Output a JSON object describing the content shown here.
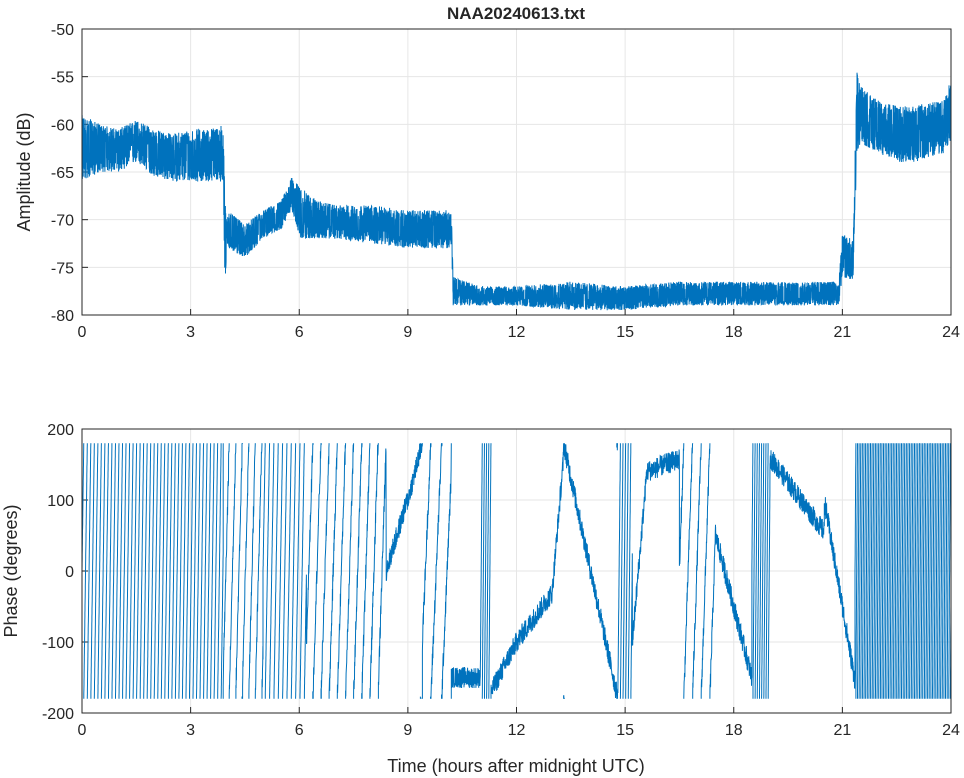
{
  "chart_data": [
    {
      "type": "line",
      "title": "NAA20240613.txt",
      "xlabel": "",
      "ylabel": "Amplitude (dB)",
      "xlim": [
        0,
        24
      ],
      "ylim": [
        -80,
        -50
      ],
      "xticks": [
        "0",
        "3",
        "6",
        "9",
        "12",
        "15",
        "18",
        "21",
        "24"
      ],
      "yticks": [
        "-50",
        "-55",
        "-60",
        "-65",
        "-70",
        "-75",
        "-80"
      ],
      "grid": true,
      "color": "#0072BD",
      "envelope_t_low_high": [
        [
          0,
          -66,
          -59
        ],
        [
          0.5,
          -65,
          -60
        ],
        [
          1.0,
          -65,
          -60.5
        ],
        [
          1.5,
          -64,
          -59.5
        ],
        [
          2.0,
          -65.5,
          -60.5
        ],
        [
          2.5,
          -66,
          -61
        ],
        [
          3.0,
          -66,
          -60.5
        ],
        [
          3.5,
          -66,
          -60.5
        ],
        [
          3.9,
          -66,
          -60
        ],
        [
          3.95,
          -78.5,
          -68
        ],
        [
          4.0,
          -73,
          -69
        ],
        [
          4.5,
          -74,
          -70.5
        ],
        [
          5.0,
          -72,
          -69
        ],
        [
          5.5,
          -71,
          -68
        ],
        [
          5.8,
          -69,
          -65.5
        ],
        [
          6.0,
          -72,
          -66.5
        ],
        [
          6.5,
          -72,
          -68
        ],
        [
          7.0,
          -72,
          -68.5
        ],
        [
          8.0,
          -72.5,
          -68.5
        ],
        [
          9.0,
          -73,
          -69
        ],
        [
          10.2,
          -73,
          -69
        ],
        [
          10.25,
          -79,
          -76
        ],
        [
          11.0,
          -79,
          -77
        ],
        [
          12.0,
          -79,
          -77
        ],
        [
          13.5,
          -79.5,
          -76.5
        ],
        [
          15.0,
          -79.5,
          -77
        ],
        [
          16.5,
          -79,
          -76.5
        ],
        [
          18.0,
          -79,
          -76.5
        ],
        [
          20.9,
          -79,
          -76.5
        ],
        [
          21.0,
          -76,
          -71.5
        ],
        [
          21.3,
          -76.5,
          -72
        ],
        [
          21.4,
          -63,
          -54
        ],
        [
          21.5,
          -62,
          -56
        ],
        [
          22.0,
          -63,
          -57.5
        ],
        [
          22.5,
          -64,
          -58
        ],
        [
          23.0,
          -64,
          -58
        ],
        [
          23.8,
          -63,
          -57.5
        ],
        [
          24.0,
          -62,
          -55
        ]
      ]
    },
    {
      "type": "line",
      "title": "",
      "xlabel": "Time (hours after midnight UTC)",
      "ylabel": "Phase (degrees)",
      "xlim": [
        0,
        24
      ],
      "ylim": [
        -200,
        200
      ],
      "xticks": [
        "0",
        "3",
        "6",
        "9",
        "12",
        "15",
        "18",
        "21",
        "24"
      ],
      "yticks": [
        "200",
        "100",
        "0",
        "-100",
        "-200"
      ],
      "grid": true,
      "color": "#0072BD",
      "wrap_range": [
        -180,
        180
      ],
      "segments_t0_t1_phase0_slope_deg_per_hr": [
        [
          0,
          3.9,
          0,
          3700
        ],
        [
          3.9,
          5.0,
          -150,
          2000
        ],
        [
          5.0,
          6.2,
          0,
          3000
        ],
        [
          6.2,
          8.4,
          -100,
          1600
        ],
        [
          8.4,
          9.0,
          0,
          170
        ],
        [
          9.0,
          9.4,
          100,
          200
        ],
        [
          9.4,
          10.2,
          -100,
          1200
        ],
        [
          10.2,
          11.0,
          -150,
          0
        ],
        [
          11.0,
          11.3,
          -150,
          6000
        ],
        [
          11.3,
          12.0,
          -170,
          100
        ],
        [
          12.0,
          13.0,
          -100,
          70
        ],
        [
          13.0,
          13.3,
          -20,
          600
        ],
        [
          13.3,
          14.8,
          180,
          -240
        ],
        [
          14.8,
          15.2,
          -170,
          5000
        ],
        [
          15.2,
          15.6,
          -100,
          600
        ],
        [
          15.6,
          16.5,
          140,
          20
        ],
        [
          16.5,
          17.5,
          0,
          1500
        ],
        [
          17.5,
          18.5,
          50,
          -200
        ],
        [
          18.5,
          19.0,
          0,
          6000
        ],
        [
          19.0,
          20.5,
          160,
          -70
        ],
        [
          20.5,
          21.0,
          100,
          -300
        ],
        [
          21.0,
          21.35,
          -50,
          -300
        ],
        [
          21.35,
          24.0,
          0,
          8000
        ]
      ]
    }
  ]
}
